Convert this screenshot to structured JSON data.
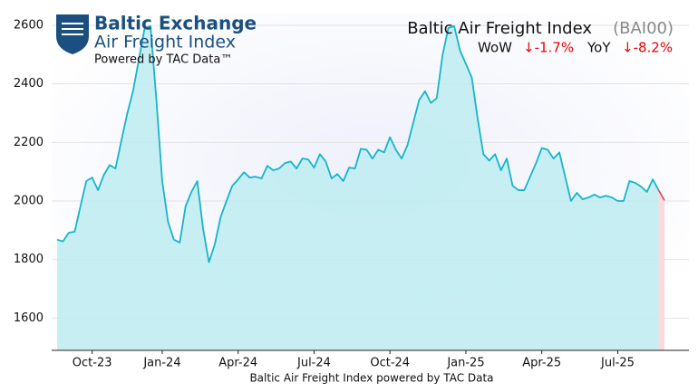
{
  "chart_data": {
    "type": "area",
    "logo": {
      "name": "Baltic Exchange",
      "product": "Air Freight Index",
      "tagline": "Powered by TAC Data™"
    },
    "title": "Baltic Air Freight Index",
    "code": "(BAI00)",
    "changes": [
      {
        "label": "WoW",
        "value": "↓-1.7%"
      },
      {
        "label": "YoY",
        "value": "↓-8.2%"
      }
    ],
    "xlabel": "Baltic Air Freight Index powered by TAC Data",
    "categories": [
      null,
      null,
      null,
      null,
      null,
      null,
      "Oct-23",
      null,
      null,
      null,
      null,
      null,
      null,
      null,
      null,
      null,
      null,
      null,
      "Jan-24",
      null,
      null,
      null,
      null,
      null,
      null,
      null,
      null,
      null,
      null,
      null,
      null,
      "Apr-24",
      null,
      null,
      null,
      null,
      null,
      null,
      null,
      null,
      null,
      null,
      null,
      null,
      "Jul-24",
      null,
      null,
      null,
      null,
      null,
      null,
      null,
      null,
      null,
      null,
      null,
      null,
      "Oct-24",
      null,
      null,
      null,
      null,
      null,
      null,
      null,
      null,
      null,
      null,
      null,
      null,
      "Jan-25",
      null,
      null,
      null,
      null,
      null,
      null,
      null,
      null,
      null,
      null,
      null,
      null,
      "Apr-25",
      null,
      null,
      null,
      null,
      null,
      null,
      null,
      null,
      null,
      null,
      null,
      null,
      "Jul-25",
      null,
      null,
      null,
      null,
      null,
      null,
      null,
      null
    ],
    "series": [
      {
        "name": "BAI00",
        "color": "#17b5c9",
        "fill": "#bdecf1",
        "latest_color": "#e8334a",
        "latest_fill": "#fbd9dd",
        "values": [
          1868,
          1862,
          1892,
          1895,
          1982,
          2068,
          2080,
          2037,
          2089,
          2123,
          2111,
          2206,
          2298,
          2375,
          2483,
          2591,
          2597,
          2345,
          2068,
          1929,
          1868,
          1858,
          1982,
          2031,
          2068,
          1905,
          1791,
          1852,
          1945,
          2000,
          2052,
          2074,
          2098,
          2080,
          2083,
          2077,
          2120,
          2105,
          2111,
          2129,
          2135,
          2111,
          2145,
          2142,
          2114,
          2160,
          2135,
          2077,
          2092,
          2068,
          2114,
          2111,
          2178,
          2175,
          2145,
          2175,
          2166,
          2218,
          2175,
          2145,
          2191,
          2268,
          2345,
          2375,
          2335,
          2351,
          2498,
          2591,
          2597,
          2514,
          2468,
          2422,
          2283,
          2160,
          2138,
          2160,
          2105,
          2145,
          2052,
          2037,
          2037,
          2083,
          2129,
          2181,
          2175,
          2145,
          2166,
          2083,
          2000,
          2028,
          2006,
          2012,
          2022,
          2012,
          2018,
          2012,
          2000,
          2000,
          2068,
          2062,
          2049,
          2031,
          2074,
          2037,
          2002
        ]
      }
    ],
    "ylim": [
      1490,
      2640
    ],
    "yticks": [
      1600,
      1800,
      2000,
      2200,
      2400,
      2600
    ],
    "grid": true
  }
}
